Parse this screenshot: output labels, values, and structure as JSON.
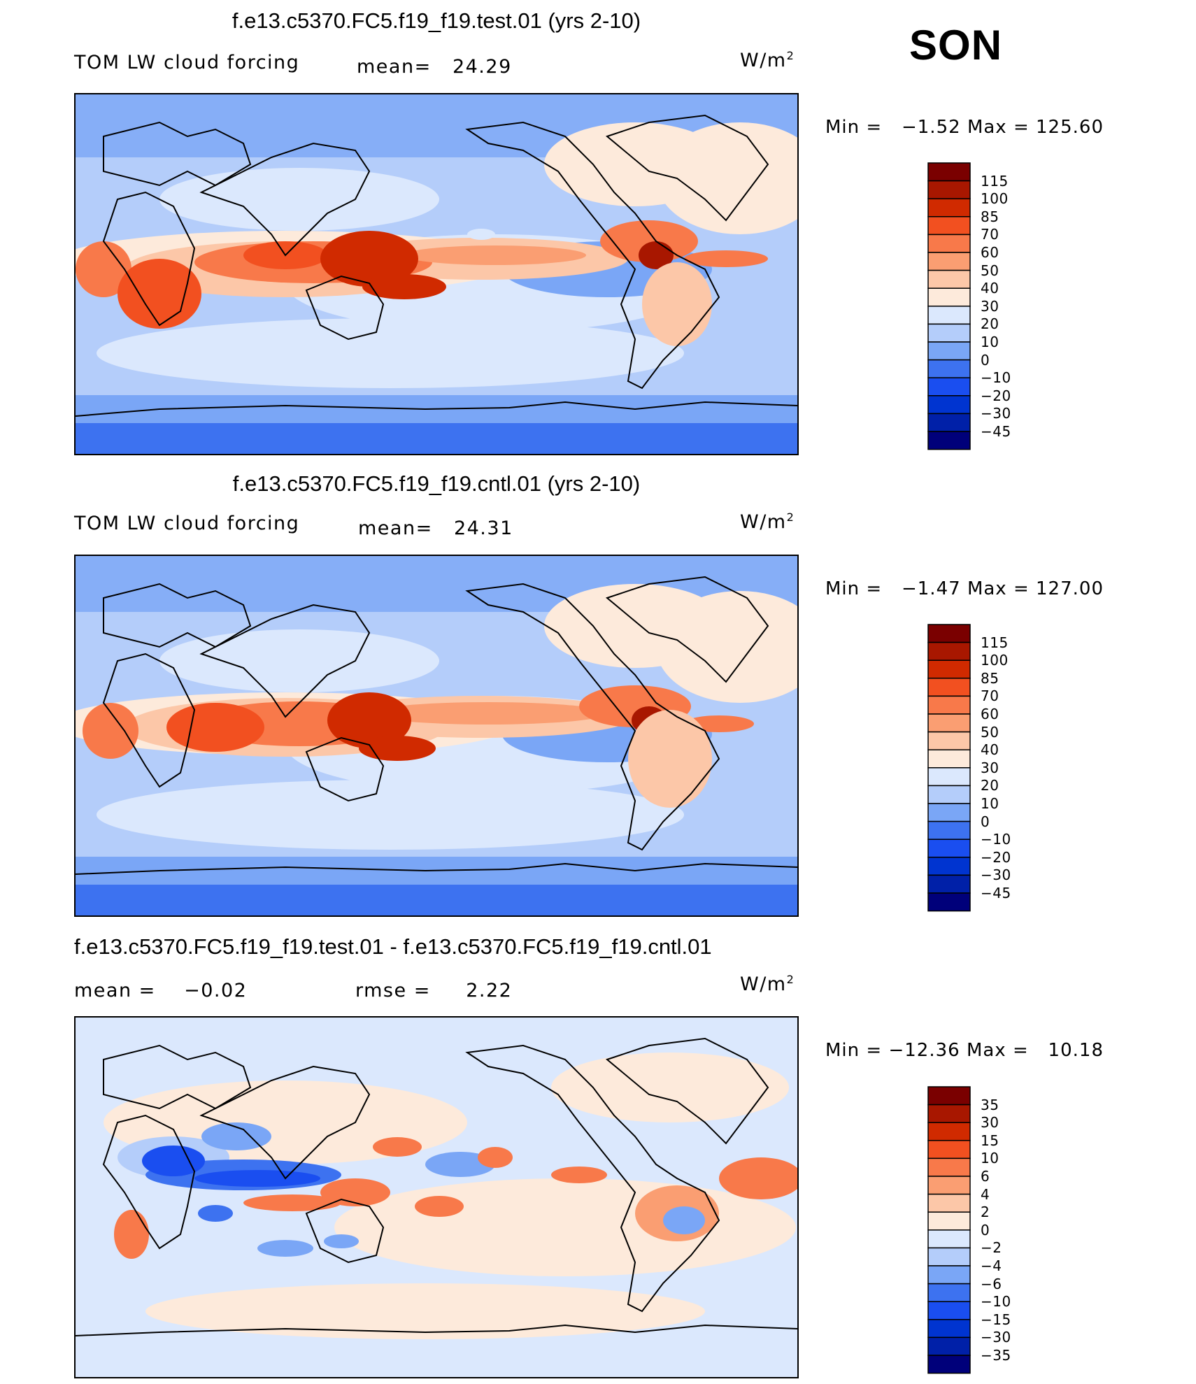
{
  "season": "SON",
  "colors": {
    "abs_scale": [
      "#00007a",
      "#0020a8",
      "#0034d0",
      "#1a4ef0",
      "#3d72f0",
      "#7aa6f6",
      "#b4cdfa",
      "#dbe8fd",
      "#fdeadb",
      "#fcc7a8",
      "#fa9e72",
      "#f8794a",
      "#f25020",
      "#d02a00",
      "#a81700",
      "#7a0000"
    ],
    "diff_scale": [
      "#00007a",
      "#0020a8",
      "#0034d0",
      "#1a4ef0",
      "#3d72f0",
      "#7aa6f6",
      "#b4cdfa",
      "#dbe8fd",
      "#fdeadb",
      "#fcc7a8",
      "#fa9e72",
      "#f8794a",
      "#f25020",
      "#d02a00",
      "#a81700",
      "#7a0000"
    ]
  },
  "panels": [
    {
      "title": "f.e13.c5370.FC5.f19_f19.test.01 (yrs 2-10)",
      "variable": "TOM LW cloud forcing",
      "mean_label": "mean=",
      "mean_value": "24.29",
      "units": "W/m",
      "units_exp": "2",
      "min_label": "Min =",
      "min_value": "−1.52",
      "max_label": "Max =",
      "max_value": "125.60",
      "ticks": [
        "115",
        "100",
        "85",
        "70",
        "60",
        "50",
        "40",
        "30",
        "20",
        "10",
        "0",
        "−10",
        "−20",
        "−30",
        "−45"
      ]
    },
    {
      "title": "f.e13.c5370.FC5.f19_f19.cntl.01 (yrs 2-10)",
      "variable": "TOM LW cloud forcing",
      "mean_label": "mean=",
      "mean_value": "24.31",
      "units": "W/m",
      "units_exp": "2",
      "min_label": "Min =",
      "min_value": "−1.47",
      "max_label": "Max =",
      "max_value": "127.00",
      "ticks": [
        "115",
        "100",
        "85",
        "70",
        "60",
        "50",
        "40",
        "30",
        "20",
        "10",
        "0",
        "−10",
        "−20",
        "−30",
        "−45"
      ]
    },
    {
      "title": "f.e13.c5370.FC5.f19_f19.test.01 - f.e13.c5370.FC5.f19_f19.cntl.01",
      "mean_label": "mean =",
      "mean_value": "−0.02",
      "rmse_label": "rmse =",
      "rmse_value": "2.22",
      "units": "W/m",
      "units_exp": "2",
      "min_label": "Min =",
      "min_value": "−12.36",
      "max_label": "Max =",
      "max_value": "10.18",
      "ticks": [
        "35",
        "30",
        "15",
        "10",
        "6",
        "4",
        "2",
        "0",
        "−2",
        "−4",
        "−6",
        "−10",
        "−15",
        "−30",
        "−35"
      ]
    }
  ]
}
